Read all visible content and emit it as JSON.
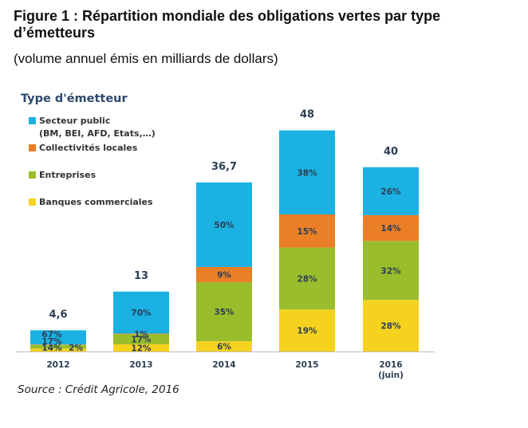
{
  "title": "Figure 1 : Répartition mondiale des obligations vertes par type d’émetteurs",
  "subtitle": "(volume annuel émis en milliards de dollars)",
  "source": "Source : Crédit Agricole, 2016",
  "chart_data": {
    "type": "bar",
    "stacked": true,
    "legend_title": "Type d'émetteur",
    "legend_position": "top-left",
    "categories": [
      "2012",
      "2013",
      "2014",
      "2015",
      "2016 (juin)"
    ],
    "category_lines": [
      [
        "2012"
      ],
      [
        "2013"
      ],
      [
        "2014"
      ],
      [
        "2015"
      ],
      [
        "2016",
        "(juin)"
      ]
    ],
    "totals": [
      4.6,
      13,
      36.7,
      48,
      40
    ],
    "total_labels": [
      "4,6",
      "13",
      "36,7",
      "48",
      "40"
    ],
    "series": [
      {
        "name": "Banques commerciales",
        "color": "#f5d21e",
        "percent": [
          14,
          12,
          6,
          19,
          28
        ],
        "labels": [
          "14%",
          "12%",
          "6%",
          "19%",
          "28%"
        ]
      },
      {
        "name": "Entreprises",
        "color": "#9abd2b",
        "percent": [
          17,
          17,
          35,
          28,
          32
        ],
        "labels": [
          "17%",
          "17%",
          "35%",
          "28%",
          "32%"
        ]
      },
      {
        "name": "Collectivités locales",
        "color": "#ea7f25",
        "percent": [
          2,
          1,
          9,
          15,
          14
        ],
        "labels": [
          "2%",
          "1%",
          "9%",
          "15%",
          "14%"
        ]
      },
      {
        "name": "Secteur public (BM, BEI, AFD, Etats,…)",
        "color": "#1bb1e2",
        "percent": [
          67,
          70,
          50,
          38,
          26
        ],
        "labels": [
          "67%",
          "70%",
          "50%",
          "38%",
          "26%"
        ]
      }
    ],
    "legend": [
      {
        "lines": [
          "Secteur public",
          "(BM, BEI, AFD, Etats,…)"
        ],
        "color": "#1bb1e2"
      },
      {
        "lines": [
          "Collectivités locales"
        ],
        "color": "#ea7f25"
      },
      {
        "lines": [
          "Entreprises"
        ],
        "color": "#9abd2b"
      },
      {
        "lines": [
          "Banques commerciales"
        ],
        "color": "#f5d21e"
      }
    ],
    "ylim": [
      0,
      50
    ],
    "grid": false
  }
}
